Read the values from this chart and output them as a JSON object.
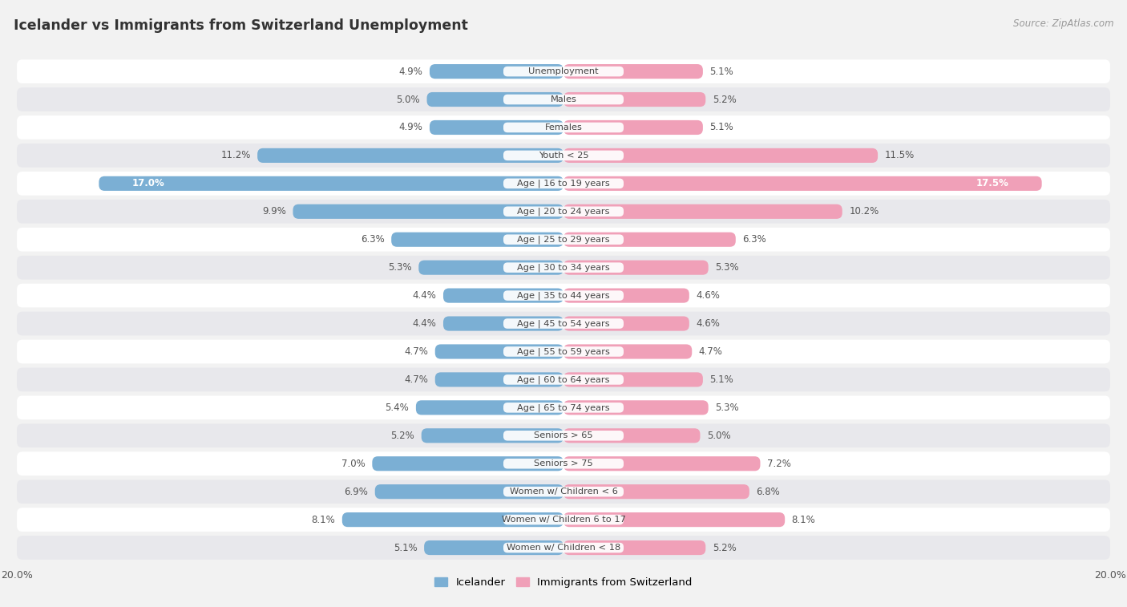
{
  "title": "Icelander vs Immigrants from Switzerland Unemployment",
  "source": "Source: ZipAtlas.com",
  "categories": [
    "Unemployment",
    "Males",
    "Females",
    "Youth < 25",
    "Age | 16 to 19 years",
    "Age | 20 to 24 years",
    "Age | 25 to 29 years",
    "Age | 30 to 34 years",
    "Age | 35 to 44 years",
    "Age | 45 to 54 years",
    "Age | 55 to 59 years",
    "Age | 60 to 64 years",
    "Age | 65 to 74 years",
    "Seniors > 65",
    "Seniors > 75",
    "Women w/ Children < 6",
    "Women w/ Children 6 to 17",
    "Women w/ Children < 18"
  ],
  "icelander": [
    4.9,
    5.0,
    4.9,
    11.2,
    17.0,
    9.9,
    6.3,
    5.3,
    4.4,
    4.4,
    4.7,
    4.7,
    5.4,
    5.2,
    7.0,
    6.9,
    8.1,
    5.1
  ],
  "switzerland": [
    5.1,
    5.2,
    5.1,
    11.5,
    17.5,
    10.2,
    6.3,
    5.3,
    4.6,
    4.6,
    4.7,
    5.1,
    5.3,
    5.0,
    7.2,
    6.8,
    8.1,
    5.2
  ],
  "icelander_color": "#7bafd4",
  "switzerland_color": "#f0a0b8",
  "icelander_label": "Icelander",
  "switzerland_label": "Immigrants from Switzerland",
  "x_max": 20.0,
  "bg_color": "#f2f2f2",
  "row_light": "#ffffff",
  "row_dark": "#e8e8ec",
  "bar_label_threshold": 15.0,
  "title_color": "#333333",
  "source_color": "#999999"
}
